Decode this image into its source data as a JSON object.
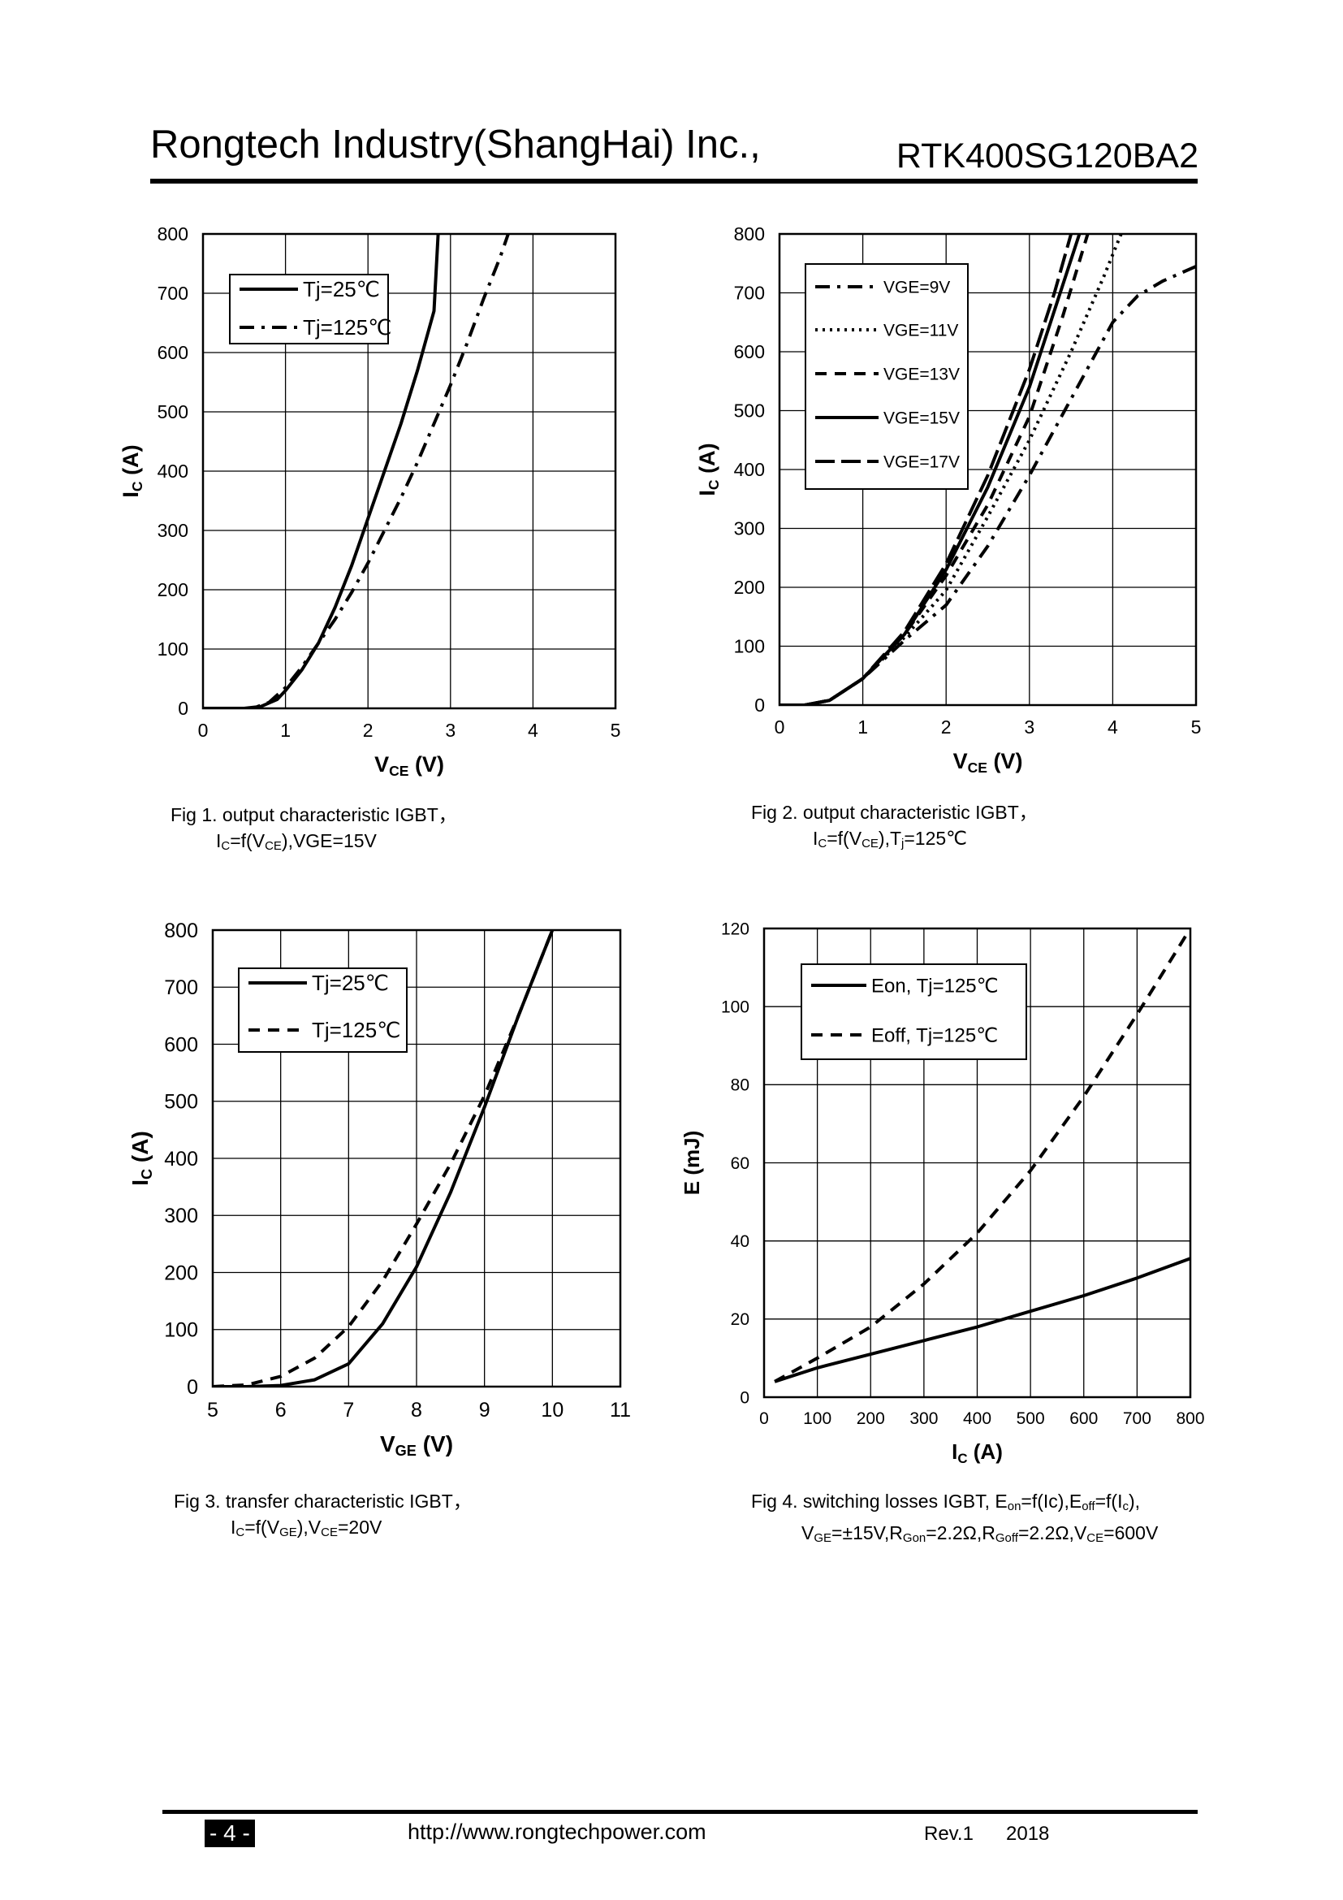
{
  "header": {
    "company": "Rongtech Industry(ShangHai) Inc.,",
    "part_number": "RTK400SG120BA2"
  },
  "captions": {
    "fig1": {
      "line1": "Fig 1. output characteristic IGBT，",
      "l2a": "I",
      "l2b": "C",
      "l2c": "=f(V",
      "l2d": "CE",
      "l2e": "),VGE=15V"
    },
    "fig2": {
      "line1": "Fig 2. output characteristic IGBT，",
      "l2a": "I",
      "l2b": "C",
      "l2c": "=f(V",
      "l2d": "CE",
      "l2e": "),T",
      "l2f": "j",
      "l2g": "=125℃"
    },
    "fig3": {
      "line1": "Fig 3. transfer characteristic IGBT，",
      "l2a": "I",
      "l2b": "C",
      "l2c": "=f(V",
      "l2d": "GE",
      "l2e": "),V",
      "l2f": "CE",
      "l2g": "=20V"
    },
    "fig4": {
      "l1a": "Fig 4. switching losses IGBT, E",
      "l1b": "on",
      "l1c": "=f(Ic),E",
      "l1d": "off",
      "l1e": "=f(I",
      "l1f": "c",
      "l1g": "),",
      "l2a": "V",
      "l2b": "GE",
      "l2c": "=±15V,R",
      "l2d": "Gon",
      "l2e": "=2.2Ω,R",
      "l2f": "Goff",
      "l2g": "=2.2Ω,V",
      "l2h": "CE",
      "l2i": "=600V"
    }
  },
  "footer": {
    "page": "- 4 -",
    "url": "http://www.rongtechpower.com",
    "rev": "Rev.1",
    "year": "2018"
  },
  "chart_data": [
    {
      "id": "fig1",
      "type": "line",
      "xlabel": "V",
      "xlabel_sub": "CE",
      "xlabel_unit": " (V)",
      "ylabel": "I",
      "ylabel_sub": "C",
      "ylabel_unit": " (A)",
      "xlim": [
        0,
        5
      ],
      "ylim": [
        0,
        800
      ],
      "xticks": [
        "0",
        "1",
        "2",
        "3",
        "4",
        "5"
      ],
      "yticks": [
        "0",
        "100",
        "200",
        "300",
        "400",
        "500",
        "600",
        "700",
        "800"
      ],
      "grid": true,
      "legend_position": "top-left",
      "series": [
        {
          "name": "Tj=25℃",
          "style": "solid",
          "x": [
            0,
            0.5,
            0.7,
            0.9,
            1.0,
            1.2,
            1.4,
            1.6,
            1.8,
            2.0,
            2.2,
            2.4,
            2.6,
            2.8,
            2.85
          ],
          "y": [
            0,
            0,
            3,
            15,
            30,
            65,
            110,
            170,
            240,
            320,
            400,
            480,
            570,
            670,
            800
          ]
        },
        {
          "name": "Tj=125℃",
          "style": "dashdot",
          "x": [
            0,
            0.6,
            0.8,
            1.0,
            1.2,
            1.4,
            1.6,
            1.8,
            2.0,
            2.2,
            2.4,
            2.6,
            2.8,
            3.0,
            3.2,
            3.4,
            3.6,
            3.7
          ],
          "y": [
            0,
            0,
            10,
            35,
            70,
            110,
            150,
            195,
            245,
            300,
            355,
            415,
            480,
            545,
            615,
            690,
            760,
            800
          ]
        }
      ]
    },
    {
      "id": "fig2",
      "type": "line",
      "xlabel": "V",
      "xlabel_sub": "CE",
      "xlabel_unit": " (V)",
      "ylabel": "I",
      "ylabel_sub": "C",
      "ylabel_unit": " (A)",
      "xlim": [
        0,
        5
      ],
      "ylim": [
        0,
        800
      ],
      "xticks": [
        "0",
        "1",
        "2",
        "3",
        "4",
        "5"
      ],
      "yticks": [
        "0",
        "100",
        "200",
        "300",
        "400",
        "500",
        "600",
        "700",
        "800"
      ],
      "grid": true,
      "legend_position": "top-left",
      "series": [
        {
          "name": "VGE=9V",
          "style": "dashdot",
          "x": [
            0,
            0.3,
            0.6,
            1.0,
            1.5,
            2.0,
            2.5,
            3.0,
            3.5,
            4.0,
            4.3,
            4.6,
            5.0
          ],
          "y": [
            0,
            0,
            8,
            45,
            110,
            170,
            270,
            390,
            520,
            650,
            695,
            720,
            745
          ]
        },
        {
          "name": "VGE=11V",
          "style": "dotted",
          "x": [
            0,
            0.3,
            0.6,
            1.0,
            1.5,
            2.0,
            2.5,
            3.0,
            3.5,
            3.9,
            4.1
          ],
          "y": [
            0,
            0,
            8,
            45,
            115,
            195,
            320,
            450,
            600,
            730,
            800
          ]
        },
        {
          "name": "VGE=13V",
          "style": "dashed",
          "x": [
            0,
            0.3,
            0.6,
            1.0,
            1.5,
            2.0,
            2.5,
            3.0,
            3.4,
            3.7
          ],
          "y": [
            0,
            0,
            8,
            45,
            120,
            220,
            340,
            490,
            660,
            800
          ]
        },
        {
          "name": "VGE=15V",
          "style": "solid",
          "x": [
            0,
            0.3,
            0.6,
            1.0,
            1.5,
            2.0,
            2.5,
            3.0,
            3.3,
            3.6
          ],
          "y": [
            0,
            0,
            8,
            45,
            120,
            230,
            370,
            540,
            670,
            800
          ]
        },
        {
          "name": "VGE=17V",
          "style": "longdash",
          "x": [
            0,
            0.3,
            0.6,
            1.0,
            1.5,
            2.0,
            2.5,
            3.0,
            3.3,
            3.5
          ],
          "y": [
            0,
            0,
            8,
            45,
            125,
            240,
            390,
            570,
            700,
            800
          ]
        }
      ]
    },
    {
      "id": "fig3",
      "type": "line",
      "xlabel": "V",
      "xlabel_sub": "GE",
      "xlabel_unit": " (V)",
      "ylabel": "I",
      "ylabel_sub": "C",
      "ylabel_unit": " (A)",
      "xlim": [
        5,
        11
      ],
      "ylim": [
        0,
        800
      ],
      "xticks": [
        "5",
        "6",
        "7",
        "8",
        "9",
        "10",
        "11"
      ],
      "yticks": [
        "0",
        "100",
        "200",
        "300",
        "400",
        "500",
        "600",
        "700",
        "800"
      ],
      "grid": true,
      "legend_position": "top-left",
      "series": [
        {
          "name": "Tj=25℃",
          "style": "solid",
          "x": [
            5,
            5.5,
            6.0,
            6.5,
            7.0,
            7.5,
            8.0,
            8.5,
            9.0,
            9.5,
            10.0
          ],
          "y": [
            0,
            0,
            2,
            12,
            40,
            110,
            210,
            340,
            490,
            650,
            800
          ]
        },
        {
          "name": "Tj=125℃",
          "style": "dashed",
          "x": [
            5,
            5.5,
            6.0,
            6.5,
            7.0,
            7.5,
            8.0,
            8.5,
            9.0,
            9.5,
            10.0
          ],
          "y": [
            0,
            3,
            18,
            50,
            105,
            185,
            285,
            390,
            510,
            650,
            800
          ]
        }
      ]
    },
    {
      "id": "fig4",
      "type": "line",
      "xlabel": "I",
      "xlabel_sub": "C",
      "xlabel_unit": " (A)",
      "ylabel": "E (mJ)",
      "ylabel_sub": "",
      "ylabel_unit": "",
      "xlim": [
        0,
        800
      ],
      "ylim": [
        0,
        120
      ],
      "xticks": [
        "0",
        "100",
        "200",
        "300",
        "400",
        "500",
        "600",
        "700",
        "800"
      ],
      "yticks": [
        "0",
        "20",
        "40",
        "60",
        "80",
        "100",
        "120"
      ],
      "grid": true,
      "legend_position": "top-left",
      "series": [
        {
          "name": "Eon, Tj=125℃",
          "style": "solid",
          "x": [
            20,
            100,
            200,
            300,
            400,
            500,
            600,
            700,
            800
          ],
          "y": [
            4,
            7.5,
            11,
            14.5,
            18,
            22,
            26,
            30.5,
            35.5
          ]
        },
        {
          "name": "Eoff, Tj=125℃",
          "style": "dashed",
          "x": [
            20,
            100,
            200,
            300,
            400,
            500,
            600,
            700,
            800
          ],
          "y": [
            4,
            10,
            18,
            29,
            42,
            58,
            77,
            98,
            120
          ]
        }
      ]
    }
  ]
}
